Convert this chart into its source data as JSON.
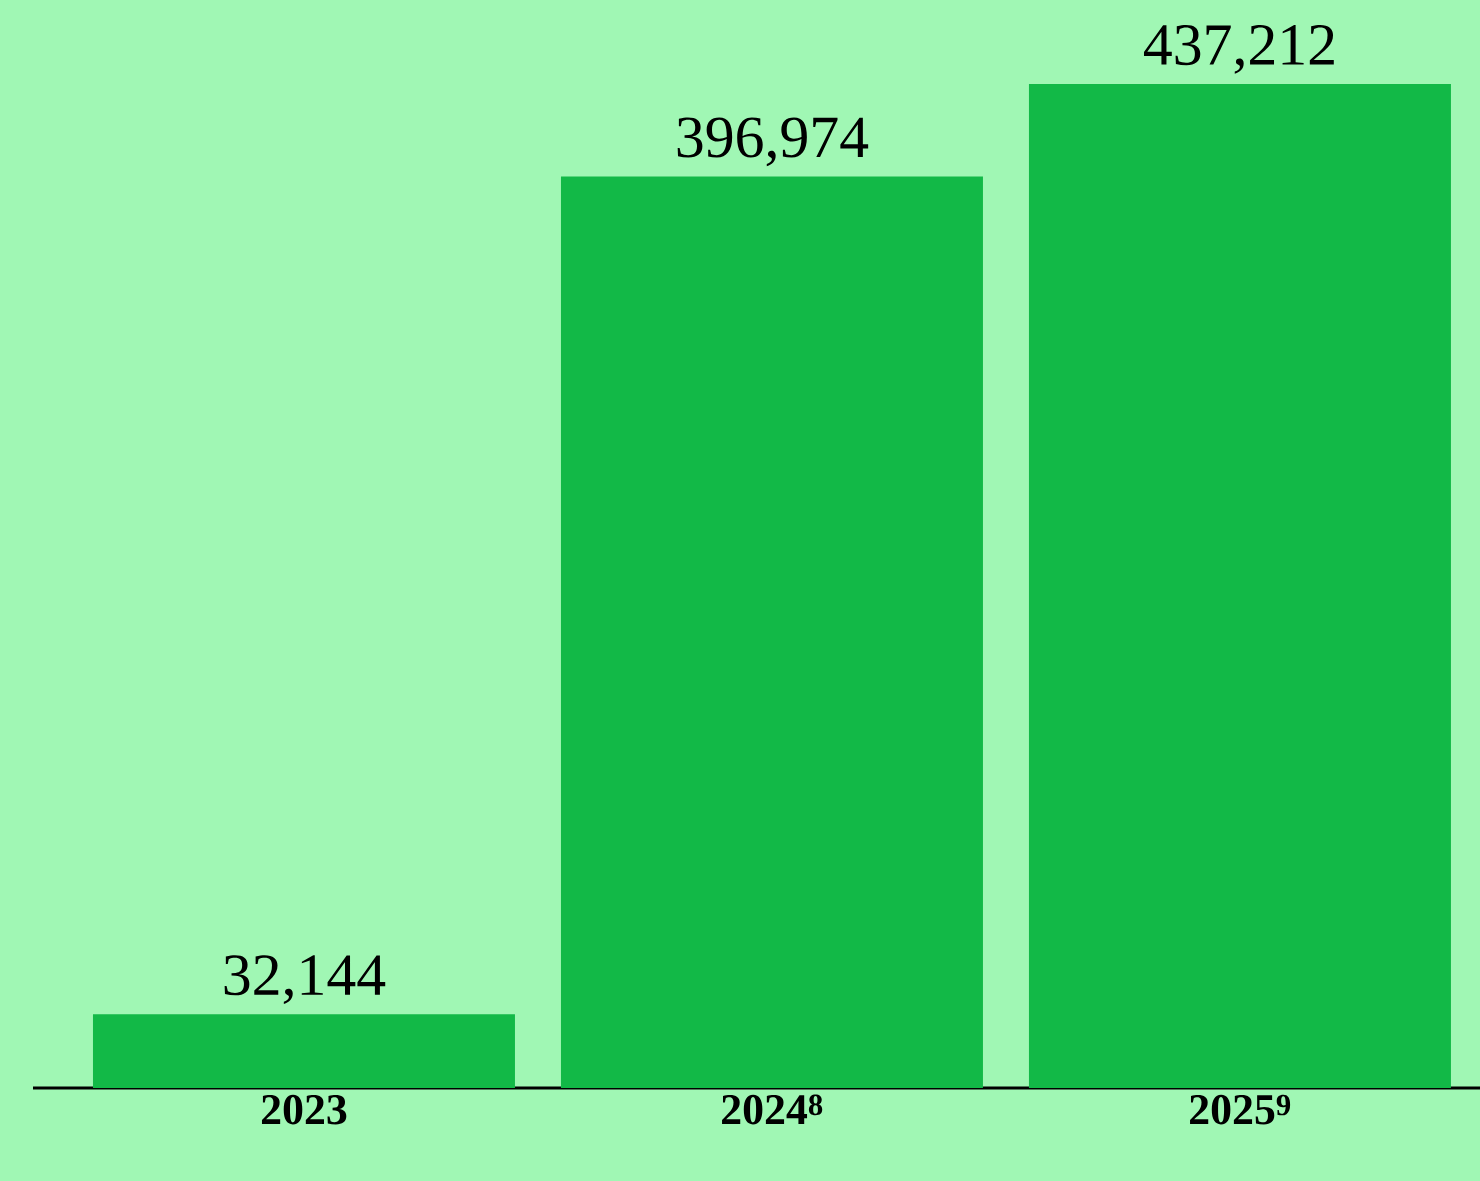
{
  "chart_data": {
    "type": "bar",
    "categories": [
      "2023",
      "2024$^{8}$",
      "2025$^{9}$"
    ],
    "values": [
      32144,
      396974,
      437212
    ],
    "value_labels": [
      "32,144",
      "396,974",
      "437,212"
    ],
    "color": "#12b947",
    "grid": false
  }
}
